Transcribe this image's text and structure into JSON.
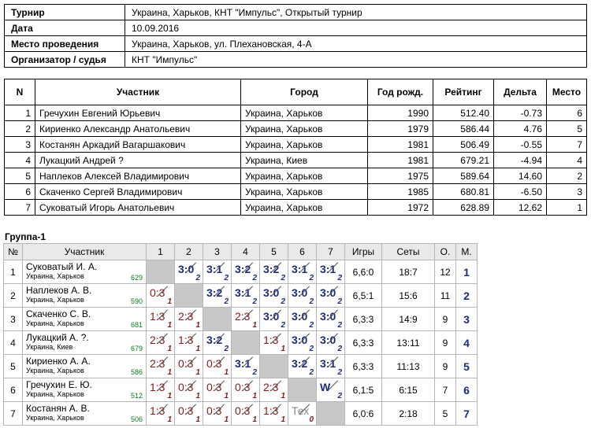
{
  "info": [
    {
      "key": "Турнир",
      "value": "Украина, Харьков, КНТ \"Импульс\", Открытый турнир"
    },
    {
      "key": "Дата",
      "value": "10.09.2016"
    },
    {
      "key": "Место проведения",
      "value": "Украина, Харьков, ул. Плехановская, 4-А"
    },
    {
      "key": "Организатор / судья",
      "value": "КНТ \"Импульс\""
    }
  ],
  "participants": {
    "headers": [
      "N",
      "Участник",
      "Город",
      "Год рожд.",
      "Рейтинг",
      "Дельта",
      "Место"
    ],
    "rows": [
      [
        "1",
        "Гречухин Евгений Юрьевич",
        "Украина, Харьков",
        "1990",
        "512.40",
        "-0.73",
        "6"
      ],
      [
        "2",
        "Кириенко Александр Анатольевич",
        "Украина, Харьков",
        "1979",
        "586.44",
        "4.76",
        "5"
      ],
      [
        "3",
        "Костанян Аркадий Вагаршакович",
        "Украина, Харьков",
        "1981",
        "506.49",
        "-0.55",
        "7"
      ],
      [
        "4",
        "Лукацкий Андрей ?",
        "Украина, Киев",
        "1981",
        "679.21",
        "-4.94",
        "4"
      ],
      [
        "5",
        "Наплеков Алексей Владимирович",
        "Украина, Харьков",
        "1975",
        "589.64",
        "14.60",
        "2"
      ],
      [
        "6",
        "Скаченко Сергей Владимирович",
        "Украина, Харьков",
        "1985",
        "680.81",
        "-6.50",
        "3"
      ],
      [
        "7",
        "Суковатый Игорь Анатольевич",
        "Украина, Харьков",
        "1972",
        "628.89",
        "12.62",
        "1"
      ]
    ]
  },
  "group": {
    "title": "Группа-1",
    "headers": [
      "№",
      "Участник",
      "1",
      "2",
      "3",
      "4",
      "5",
      "6",
      "7",
      "Игры",
      "Сеты",
      "О.",
      "М."
    ],
    "rows": [
      {
        "no": "1",
        "name": "Суковатый И. А.",
        "city": "Украина, Харьков",
        "rating": "629",
        "cells": [
          null,
          {
            "s": "3:0",
            "r": "2",
            "w": true
          },
          {
            "s": "3:1",
            "r": "2",
            "w": true
          },
          {
            "s": "3:2",
            "r": "2",
            "w": true
          },
          {
            "s": "3:2",
            "r": "2",
            "w": true
          },
          {
            "s": "3:1",
            "r": "2",
            "w": true
          },
          {
            "s": "3:1",
            "r": "2",
            "w": true
          }
        ],
        "games": "6,6:0",
        "sets": "18:7",
        "points": "12",
        "place": "1"
      },
      {
        "no": "2",
        "name": "Наплеков А. В.",
        "city": "Украина, Харьков",
        "rating": "590",
        "cells": [
          {
            "s": "0:3",
            "r": "1",
            "w": false
          },
          null,
          {
            "s": "3:2",
            "r": "2",
            "w": true
          },
          {
            "s": "3:1",
            "r": "2",
            "w": true
          },
          {
            "s": "3:0",
            "r": "2",
            "w": true
          },
          {
            "s": "3:0",
            "r": "2",
            "w": true
          },
          {
            "s": "3:0",
            "r": "2",
            "w": true
          }
        ],
        "games": "6,5:1",
        "sets": "15:6",
        "points": "11",
        "place": "2"
      },
      {
        "no": "3",
        "name": "Скаченко С. В.",
        "city": "Украина, Харьков",
        "rating": "681",
        "cells": [
          {
            "s": "1:3",
            "r": "1",
            "w": false
          },
          {
            "s": "2:3",
            "r": "1",
            "w": false
          },
          null,
          {
            "s": "2:3",
            "r": "1",
            "w": false
          },
          {
            "s": "3:0",
            "r": "2",
            "w": true
          },
          {
            "s": "3:0",
            "r": "2",
            "w": true
          },
          {
            "s": "3:0",
            "r": "2",
            "w": true
          }
        ],
        "games": "6,3:3",
        "sets": "14:9",
        "points": "9",
        "place": "3"
      },
      {
        "no": "4",
        "name": "Лукацкий А. ?.",
        "city": "Украина, Киев",
        "rating": "679",
        "cells": [
          {
            "s": "2:3",
            "r": "1",
            "w": false
          },
          {
            "s": "1:3",
            "r": "1",
            "w": false
          },
          {
            "s": "3:2",
            "r": "2",
            "w": true
          },
          null,
          {
            "s": "1:3",
            "r": "1",
            "w": false
          },
          {
            "s": "3:0",
            "r": "2",
            "w": true
          },
          {
            "s": "3:0",
            "r": "2",
            "w": true
          }
        ],
        "games": "6,3:3",
        "sets": "13:11",
        "points": "9",
        "place": "4"
      },
      {
        "no": "5",
        "name": "Кириенко А. А.",
        "city": "Украина, Харьков",
        "rating": "586",
        "cells": [
          {
            "s": "2:3",
            "r": "1",
            "w": false
          },
          {
            "s": "0:3",
            "r": "1",
            "w": false
          },
          {
            "s": "0:3",
            "r": "1",
            "w": false
          },
          {
            "s": "3:1",
            "r": "2",
            "w": true
          },
          null,
          {
            "s": "3:2",
            "r": "2",
            "w": true
          },
          {
            "s": "3:1",
            "r": "2",
            "w": true
          }
        ],
        "games": "6,3:3",
        "sets": "11:13",
        "points": "9",
        "place": "5"
      },
      {
        "no": "6",
        "name": "Гречухин Е. Ю.",
        "city": "Украина, Харьков",
        "rating": "512",
        "cells": [
          {
            "s": "1:3",
            "r": "1",
            "w": false
          },
          {
            "s": "0:3",
            "r": "1",
            "w": false
          },
          {
            "s": "0:3",
            "r": "1",
            "w": false
          },
          {
            "s": "0:3",
            "r": "1",
            "w": false
          },
          {
            "s": "2:3",
            "r": "1",
            "w": false
          },
          null,
          {
            "s": "W",
            "r": "2",
            "w": true
          }
        ],
        "games": "6,1:5",
        "sets": "6:15",
        "points": "7",
        "place": "6"
      },
      {
        "no": "7",
        "name": "Костанян А. В.",
        "city": "Украина, Харьков",
        "rating": "506",
        "cells": [
          {
            "s": "1:3",
            "r": "1",
            "w": false
          },
          {
            "s": "0:3",
            "r": "1",
            "w": false
          },
          {
            "s": "0:3",
            "r": "1",
            "w": false
          },
          {
            "s": "0:3",
            "r": "1",
            "w": false
          },
          {
            "s": "1:3",
            "r": "1",
            "w": false
          },
          {
            "s": "Тех",
            "r": "0",
            "w": false,
            "tex": true
          },
          null
        ],
        "games": "6,0:6",
        "sets": "2:18",
        "points": "5",
        "place": "7"
      }
    ]
  }
}
